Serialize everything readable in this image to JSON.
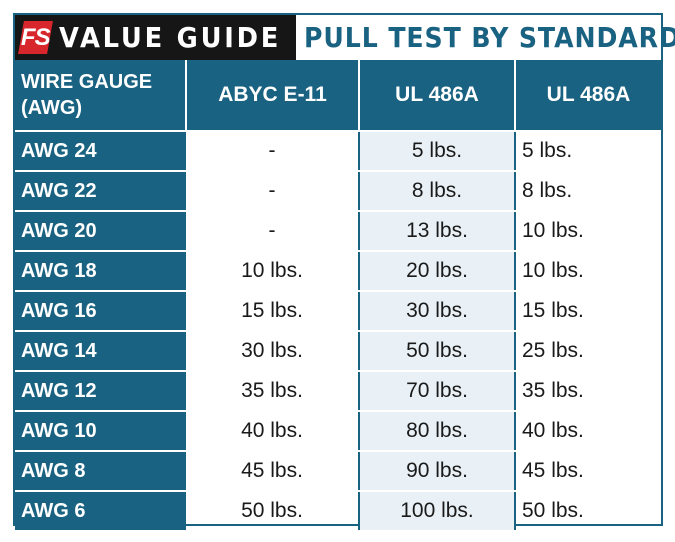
{
  "header": {
    "logo": "FS",
    "brand": "VALUE GUIDE",
    "subtitle": "PULL TEST BY STANDARD"
  },
  "colors": {
    "primary": "#1a6281",
    "brand_bg": "#161616",
    "logo_red": "#d8262d",
    "ul_column_bg": "#e9f1f6"
  },
  "chart_data": {
    "type": "table",
    "title": "PULL TEST BY STANDARD",
    "columns": [
      "WIRE GAUGE (AWG)",
      "ABYC E-11",
      "UL 486A",
      "UL 486A"
    ],
    "rows": [
      [
        "AWG 24",
        "-",
        "5 lbs.",
        "5 lbs."
      ],
      [
        "AWG 22",
        "-",
        "8 lbs.",
        "8 lbs."
      ],
      [
        "AWG 20",
        "-",
        "13 lbs.",
        "10 lbs."
      ],
      [
        "AWG 18",
        "10 lbs.",
        "20 lbs.",
        "10 lbs."
      ],
      [
        "AWG 16",
        "15 lbs.",
        "30 lbs.",
        "15 lbs."
      ],
      [
        "AWG 14",
        "30 lbs.",
        "50 lbs.",
        "25 lbs."
      ],
      [
        "AWG 12",
        "35 lbs.",
        "70 lbs.",
        "35 lbs."
      ],
      [
        "AWG 10",
        "40 lbs.",
        "80 lbs.",
        "40 lbs."
      ],
      [
        "AWG 8",
        "45 lbs.",
        "90 lbs.",
        "45 lbs."
      ],
      [
        "AWG 6",
        "50 lbs.",
        "100 lbs.",
        "50 lbs."
      ]
    ]
  }
}
